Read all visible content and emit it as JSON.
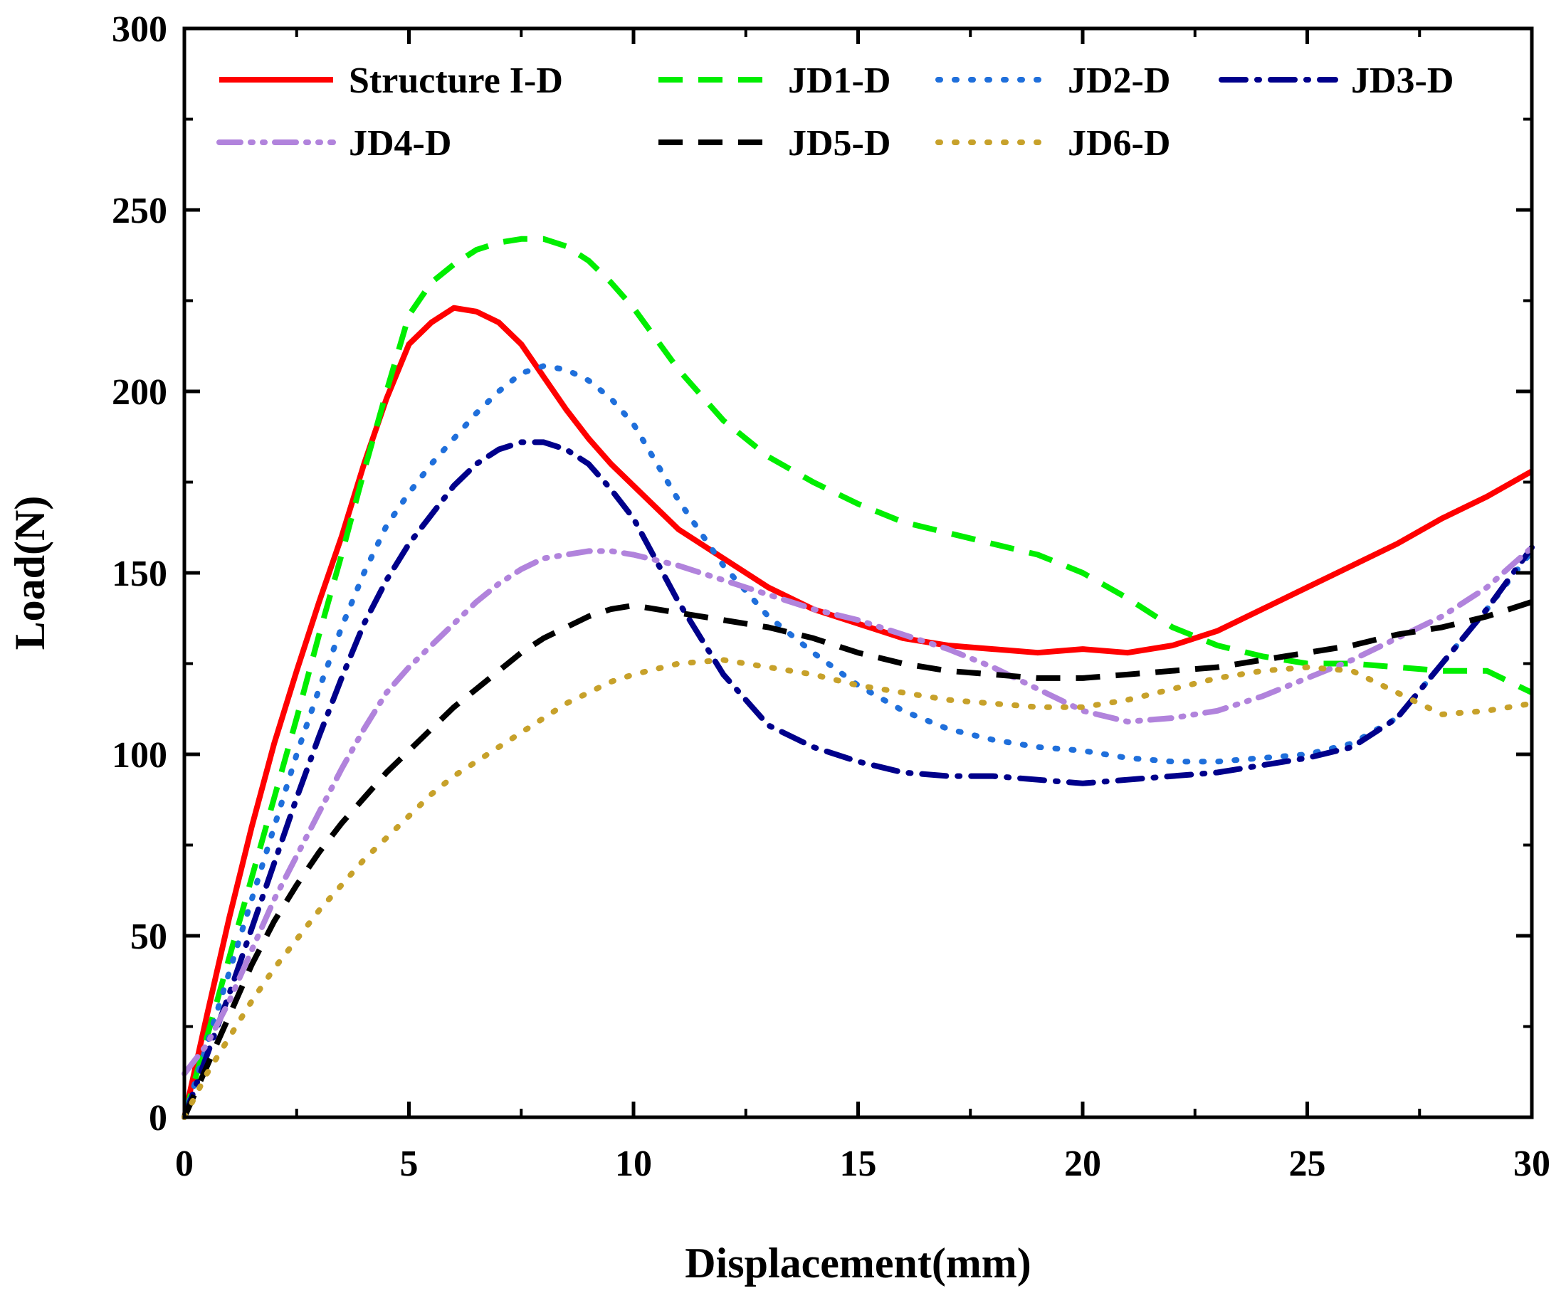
{
  "chart_data": {
    "type": "line",
    "title": "",
    "xlabel": "Displacement(mm)",
    "ylabel": "Load(N)",
    "xlim": [
      0,
      30
    ],
    "ylim": [
      0,
      300
    ],
    "xticks": [
      0,
      5,
      10,
      15,
      20,
      25,
      30
    ],
    "yticks": [
      0,
      50,
      100,
      150,
      200,
      250,
      300
    ],
    "x_tick_labels": [
      "0",
      "5",
      "10",
      "15",
      "20",
      "25",
      "30"
    ],
    "y_tick_labels": [
      "0",
      "50",
      "100",
      "150",
      "200",
      "250",
      "300"
    ],
    "grid": false,
    "legend_position": "top",
    "series": [
      {
        "name": "Structure I-D",
        "color": "#ff0000",
        "style": "solid",
        "x": [
          0,
          0.5,
          1,
          1.5,
          2,
          2.5,
          3,
          3.5,
          4,
          4.5,
          5,
          5.5,
          6,
          6.5,
          7,
          7.5,
          8,
          8.5,
          9,
          9.5,
          10,
          11,
          12,
          13,
          14,
          15,
          16,
          17,
          18,
          19,
          20,
          21,
          22,
          23,
          24,
          25,
          26,
          27,
          28,
          29,
          30
        ],
        "y": [
          0,
          28,
          55,
          80,
          103,
          123,
          142,
          160,
          180,
          198,
          213,
          219,
          223,
          222,
          219,
          213,
          204,
          195,
          187,
          180,
          174,
          162,
          154,
          146,
          140,
          136,
          132,
          130,
          129,
          128,
          129,
          128,
          130,
          134,
          140,
          146,
          152,
          158,
          165,
          171,
          178
        ]
      },
      {
        "name": "JD1-D",
        "color": "#00ee00",
        "style": "dashed",
        "x": [
          0,
          0.5,
          1,
          1.5,
          2,
          2.5,
          3,
          3.5,
          4,
          4.5,
          5,
          5.5,
          6,
          6.5,
          7,
          7.5,
          8,
          8.5,
          9,
          9.5,
          10,
          11,
          12,
          13,
          14,
          15,
          16,
          17,
          18,
          19,
          20,
          21,
          22,
          23,
          24,
          25,
          26,
          27,
          28,
          29,
          30
        ],
        "y": [
          0,
          22,
          44,
          66,
          88,
          110,
          133,
          155,
          178,
          200,
          221,
          230,
          235,
          239,
          241,
          242,
          242,
          240,
          236,
          230,
          223,
          206,
          192,
          182,
          175,
          169,
          164,
          161,
          158,
          155,
          150,
          143,
          135,
          130,
          127,
          125,
          125,
          124,
          123,
          123,
          117
        ]
      },
      {
        "name": "JD2-D",
        "color": "#1f6fdb",
        "style": "dotted",
        "x": [
          0,
          0.5,
          1,
          1.5,
          2,
          2.5,
          3,
          3.5,
          4,
          4.5,
          5,
          5.5,
          6,
          6.5,
          7,
          7.5,
          8,
          8.5,
          9,
          9.5,
          10,
          11,
          12,
          13,
          14,
          15,
          16,
          17,
          18,
          19,
          20,
          21,
          22,
          23,
          24,
          25,
          26,
          27,
          28,
          29,
          30
        ],
        "y": [
          0,
          20,
          40,
          60,
          80,
          100,
          118,
          135,
          150,
          163,
          172,
          180,
          187,
          194,
          200,
          205,
          207,
          206,
          203,
          198,
          191,
          170,
          152,
          138,
          128,
          119,
          112,
          107,
          104,
          102,
          101,
          99,
          98,
          98,
          99,
          100,
          103,
          110,
          125,
          140,
          156
        ]
      },
      {
        "name": "JD3-D",
        "color": "#00008b",
        "style": "dashdot",
        "x": [
          0,
          0.5,
          1,
          1.5,
          2,
          2.5,
          3,
          3.5,
          4,
          4.5,
          5,
          5.5,
          6,
          6.5,
          7,
          7.5,
          8,
          8.5,
          9,
          9.5,
          10,
          11,
          12,
          13,
          14,
          15,
          16,
          17,
          18,
          19,
          20,
          21,
          22,
          23,
          24,
          25,
          26,
          27,
          28,
          29,
          30
        ],
        "y": [
          0,
          17,
          34,
          52,
          70,
          88,
          105,
          121,
          136,
          148,
          158,
          166,
          174,
          180,
          184,
          186,
          186,
          184,
          180,
          173,
          165,
          142,
          122,
          108,
          102,
          98,
          95,
          94,
          94,
          93,
          92,
          93,
          94,
          95,
          97,
          99,
          102,
          110,
          125,
          140,
          157
        ]
      },
      {
        "name": "JD4-D",
        "color": "#b183dc",
        "style": "dashdotdot",
        "x": [
          0,
          0.5,
          1,
          1.5,
          2,
          2.5,
          3,
          3.5,
          4,
          4.5,
          5,
          5.5,
          6,
          6.5,
          7,
          7.5,
          8,
          8.5,
          9,
          9.5,
          10,
          11,
          12,
          13,
          14,
          15,
          16,
          17,
          18,
          19,
          20,
          21,
          22,
          23,
          24,
          25,
          26,
          27,
          28,
          29,
          30
        ],
        "y": [
          12,
          20,
          32,
          46,
          60,
          72,
          84,
          96,
          107,
          117,
          124,
          130,
          136,
          142,
          147,
          151,
          154,
          155,
          156,
          156,
          155,
          152,
          148,
          144,
          140,
          137,
          133,
          129,
          124,
          118,
          112,
          109,
          110,
          112,
          116,
          121,
          126,
          132,
          138,
          146,
          157
        ]
      },
      {
        "name": "JD5-D",
        "color": "#000000",
        "style": "dashed",
        "x": [
          0,
          0.5,
          1,
          1.5,
          2,
          2.5,
          3,
          3.5,
          4,
          4.5,
          5,
          5.5,
          6,
          6.5,
          7,
          7.5,
          8,
          8.5,
          9,
          9.5,
          10,
          11,
          12,
          13,
          14,
          15,
          16,
          17,
          18,
          19,
          20,
          21,
          22,
          23,
          24,
          25,
          26,
          27,
          28,
          29,
          30
        ],
        "y": [
          0,
          14,
          28,
          42,
          54,
          64,
          73,
          81,
          88,
          95,
          101,
          107,
          113,
          118,
          123,
          128,
          132,
          135,
          138,
          140,
          141,
          139,
          137,
          135,
          132,
          128,
          125,
          123,
          122,
          121,
          121,
          122,
          123,
          124,
          126,
          128,
          130,
          133,
          135,
          138,
          142
        ]
      },
      {
        "name": "JD6-D",
        "color": "#c7a12a",
        "style": "dotted",
        "x": [
          0,
          0.5,
          1,
          1.5,
          2,
          2.5,
          3,
          3.5,
          4,
          4.5,
          5,
          5.5,
          6,
          6.5,
          7,
          7.5,
          8,
          8.5,
          9,
          9.5,
          10,
          11,
          12,
          13,
          14,
          15,
          16,
          17,
          18,
          19,
          20,
          21,
          22,
          23,
          24,
          25,
          26,
          27,
          28,
          29,
          30
        ],
        "y": [
          0,
          12,
          22,
          32,
          41,
          49,
          57,
          64,
          71,
          77,
          83,
          89,
          94,
          98,
          102,
          106,
          110,
          114,
          117,
          120,
          122,
          125,
          126,
          124,
          122,
          119,
          117,
          115,
          114,
          113,
          113,
          115,
          118,
          121,
          123,
          124,
          123,
          117,
          111,
          112,
          114
        ]
      }
    ]
  }
}
